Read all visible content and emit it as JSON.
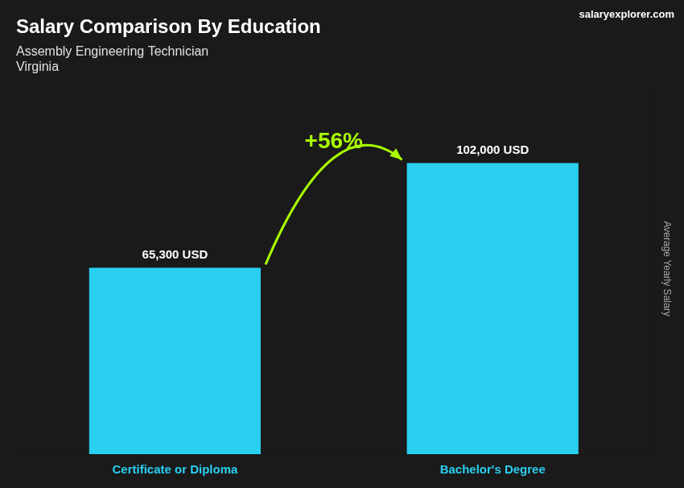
{
  "chart_data": {
    "type": "bar",
    "title": "Salary Comparison By Education",
    "subtitle": [
      "Assembly Engineering Technician",
      "Virginia"
    ],
    "categories": [
      "Certificate or Diploma",
      "Bachelor's Degree"
    ],
    "values": [
      65300,
      102000
    ],
    "value_labels": [
      "65,300 USD",
      "102,000 USD"
    ],
    "data_labels": true,
    "color": "#29d0f0",
    "ylabel": "Average Yearly Salary",
    "ylim": [
      0,
      130000
    ],
    "grid": false,
    "tick_labels": "x",
    "annotations": [
      "+56%",
      "salaryexplorer.com"
    ]
  }
}
